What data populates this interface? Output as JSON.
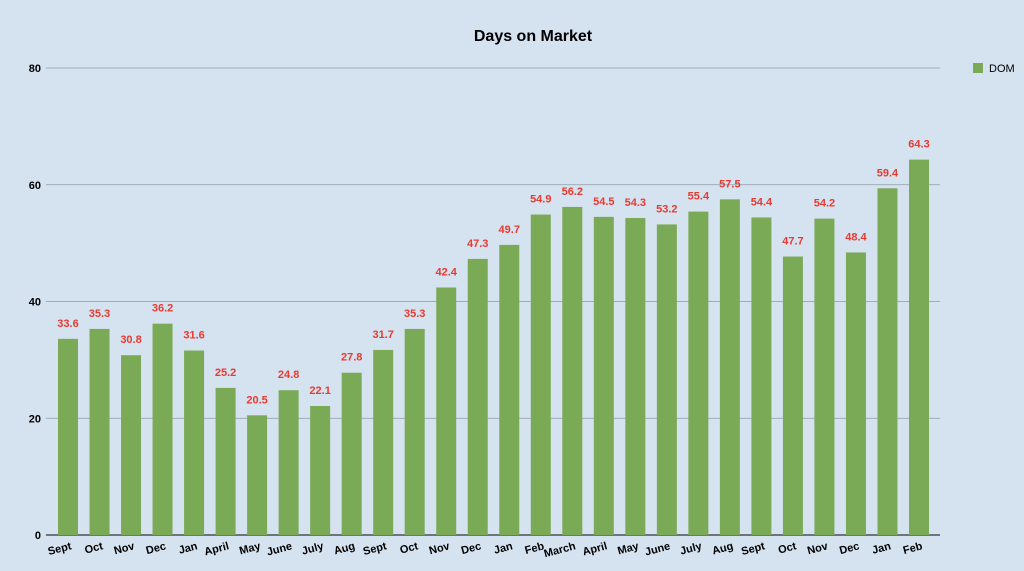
{
  "chart_data": {
    "type": "bar",
    "title": "Days on Market",
    "xlabel": "",
    "ylabel": "",
    "ylim": [
      0,
      80
    ],
    "yticks": [
      0,
      20,
      40,
      60,
      80
    ],
    "grid": true,
    "legend_position": "top-right",
    "categories": [
      "Sept",
      "Oct",
      "Nov",
      "Dec",
      "Jan",
      "April",
      "May",
      "June",
      "July",
      "Aug",
      "Sept",
      "Oct",
      "Nov",
      "Dec",
      "Jan",
      "Feb",
      "March",
      "April",
      "May",
      "June",
      "July",
      "Aug",
      "Sept",
      "Oct",
      "Nov",
      "Dec",
      "Jan",
      "Feb"
    ],
    "series": [
      {
        "name": "DOM",
        "color": "#7baa57",
        "values": [
          33.6,
          35.3,
          30.8,
          36.2,
          31.6,
          25.2,
          20.5,
          24.8,
          22.1,
          27.8,
          31.7,
          35.3,
          42.4,
          47.3,
          49.7,
          54.9,
          56.2,
          54.5,
          54.3,
          53.2,
          55.4,
          57.5,
          54.4,
          47.7,
          54.2,
          48.4,
          59.4,
          64.3
        ],
        "labels": [
          "33.6",
          "35.3",
          "30.8",
          "36.2",
          "31.6",
          "25.2",
          "20.5",
          "24.8",
          "22.1",
          "27.8",
          "31.7",
          "35.3",
          "42.4",
          "47.3",
          "49.7",
          "54.9",
          "56.2",
          "54.5",
          "54.3",
          "53.2",
          "55.4",
          "57.5",
          "54.4",
          "47.7",
          "54.2",
          "48.4",
          "59.4",
          "64.3"
        ]
      }
    ],
    "colors": {
      "background": "#d5e2f0",
      "bar": "#7baa57",
      "data_label": "#e83a2f",
      "grid": "#8f9aa8",
      "axis": "#333333"
    }
  }
}
